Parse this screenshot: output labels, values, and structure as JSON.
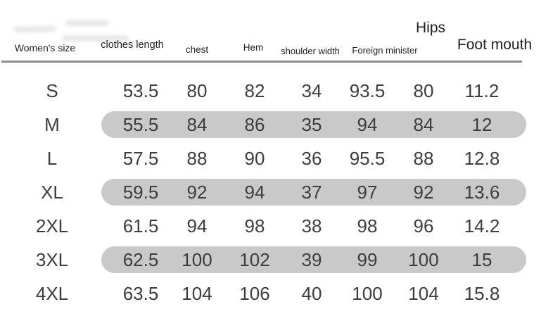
{
  "chart_data": {
    "type": "table",
    "columns": [
      "Women's size",
      "clothes length",
      "chest",
      "Hem",
      "shoulder width",
      "Foreign minister",
      "Hips",
      "Foot mouth"
    ],
    "rows": [
      [
        "S",
        "53.5",
        "80",
        "82",
        "34",
        "93.5",
        "80",
        "11.2"
      ],
      [
        "M",
        "55.5",
        "84",
        "86",
        "35",
        "94",
        "84",
        "12"
      ],
      [
        "L",
        "57.5",
        "88",
        "90",
        "36",
        "95.5",
        "88",
        "12.8"
      ],
      [
        "XL",
        "59.5",
        "92",
        "94",
        "37",
        "97",
        "92",
        "13.6"
      ],
      [
        "2XL",
        "61.5",
        "94",
        "98",
        "38",
        "98",
        "96",
        "14.2"
      ],
      [
        "3XL",
        "62.5",
        "100",
        "102",
        "39",
        "99",
        "100",
        "15"
      ],
      [
        "4XL",
        "63.5",
        "104",
        "106",
        "40",
        "100",
        "104",
        "15.8"
      ]
    ],
    "highlighted_row_indices": [
      1,
      3,
      5
    ]
  },
  "colors": {
    "highlight_pill": "#c9c9c9",
    "divider": "#8c8c8c",
    "value_text": "#3d3d3d",
    "header_text": "#1f1f1f"
  }
}
